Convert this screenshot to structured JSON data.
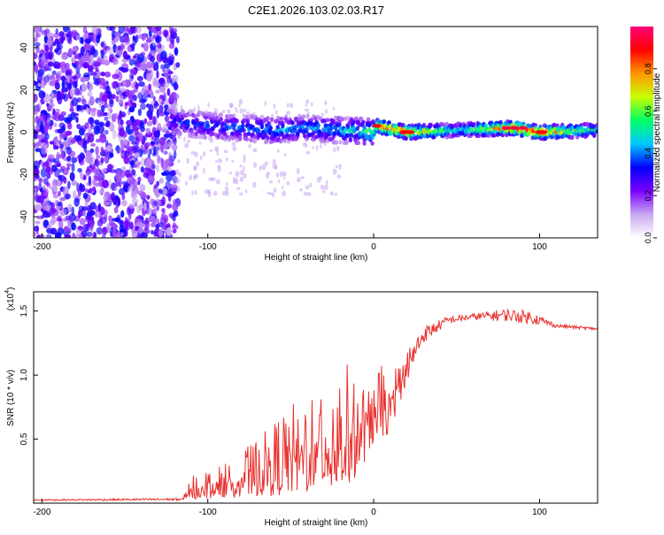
{
  "figure_title": "C2E1.2026.103.02.03.R17",
  "chart_data": [
    {
      "type": "heatmap",
      "title": "C2E1.2026.103.02.03.R17",
      "xlabel": "Height of straight line (km)",
      "ylabel": "Frequency (Hz)",
      "xlim": [
        -205,
        135
      ],
      "ylim": [
        -50,
        50
      ],
      "xticks": [
        -200,
        -100,
        0,
        100
      ],
      "yticks": [
        -40,
        -20,
        0,
        20,
        40
      ],
      "colorbar": {
        "label": "Normalized spectral amplitude",
        "range": [
          0,
          1
        ],
        "ticks": [
          0.0,
          0.2,
          0.4,
          0.6,
          0.8
        ],
        "tick_labels": [
          "0.0",
          "0.2",
          "0.4",
          "0.6",
          "0.8"
        ],
        "colormap": [
          "#ffffff",
          "#c8a8f0",
          "#7a00ff",
          "#0000ff",
          "#00c8ff",
          "#00ff64",
          "#c8ff00",
          "#ff9600",
          "#ff0000",
          "#ff0078"
        ]
      },
      "ridge": [
        {
          "x": -120,
          "freq": 5,
          "amp": 0.35
        },
        {
          "x": -100,
          "freq": 3,
          "amp": 0.4
        },
        {
          "x": -80,
          "freq": 2,
          "amp": 0.4
        },
        {
          "x": -60,
          "freq": 1,
          "amp": 0.45
        },
        {
          "x": -40,
          "freq": 2,
          "amp": 0.45
        },
        {
          "x": -20,
          "freq": 1,
          "amp": 0.45
        },
        {
          "x": 0,
          "freq": 0,
          "amp": 0.6
        },
        {
          "x": 2,
          "freq": 3,
          "amp": 0.85
        },
        {
          "x": 20,
          "freq": 0,
          "amp": 0.9
        },
        {
          "x": 50,
          "freq": 1,
          "amp": 0.5
        },
        {
          "x": 85,
          "freq": 2,
          "amp": 0.95
        },
        {
          "x": 100,
          "freq": 0,
          "amp": 0.9
        },
        {
          "x": 135,
          "freq": 1,
          "amp": 0.5
        }
      ]
    },
    {
      "type": "line",
      "xlabel": "Height of straight line (km)",
      "ylabel": "SNR (10 * v/v)",
      "yunit_multiplier": "(x10",
      "yunit_exponent": "4",
      "yunit_close": ")",
      "color": "#e8312e",
      "xlim": [
        -205,
        135
      ],
      "ylim": [
        0,
        1.65
      ],
      "xticks": [
        -200,
        -100,
        0,
        100
      ],
      "yticks": [
        0.5,
        1.0,
        1.5
      ],
      "ytick_labels": [
        "0.5",
        "1.0",
        "1.5"
      ],
      "envelope": [
        {
          "x": -205,
          "low": 0.02,
          "high": 0.03
        },
        {
          "x": -115,
          "low": 0.02,
          "high": 0.04
        },
        {
          "x": -110,
          "low": 0.03,
          "high": 0.22
        },
        {
          "x": -90,
          "low": 0.04,
          "high": 0.32
        },
        {
          "x": -70,
          "low": 0.05,
          "high": 0.5
        },
        {
          "x": -50,
          "low": 0.06,
          "high": 0.78
        },
        {
          "x": -30,
          "low": 0.08,
          "high": 1.0
        },
        {
          "x": -15,
          "low": 0.1,
          "high": 1.1
        },
        {
          "x": 0,
          "low": 0.45,
          "high": 1.05
        },
        {
          "x": 10,
          "low": 0.55,
          "high": 1.1
        },
        {
          "x": 20,
          "low": 0.95,
          "high": 1.2
        },
        {
          "x": 30,
          "low": 1.25,
          "high": 1.38
        },
        {
          "x": 45,
          "low": 1.4,
          "high": 1.46
        },
        {
          "x": 60,
          "low": 1.43,
          "high": 1.48
        },
        {
          "x": 80,
          "low": 1.42,
          "high": 1.52
        },
        {
          "x": 95,
          "low": 1.4,
          "high": 1.5
        },
        {
          "x": 110,
          "low": 1.37,
          "high": 1.4
        },
        {
          "x": 135,
          "low": 1.35,
          "high": 1.37
        }
      ]
    }
  ]
}
